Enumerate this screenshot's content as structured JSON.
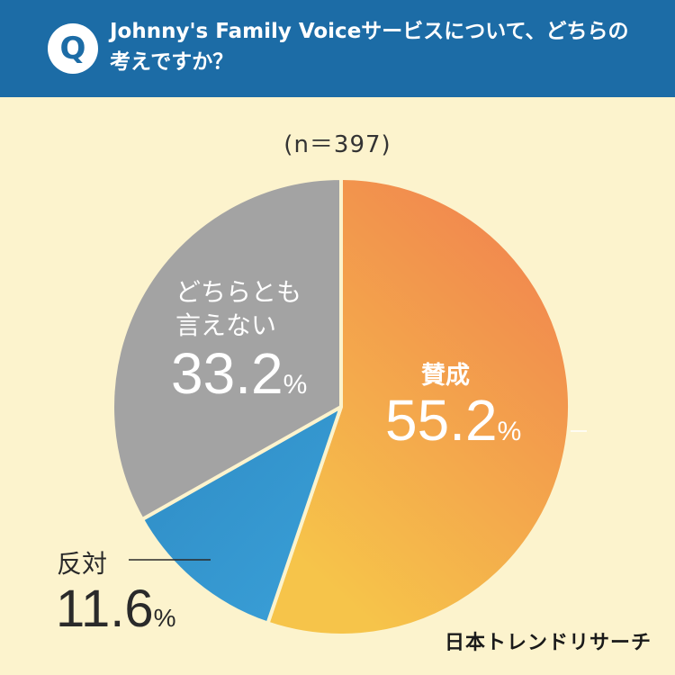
{
  "header": {
    "badge": "Q",
    "question": "Johnny's Family Voiceサービスについて、どちらの\n考えですか？"
  },
  "sample": "(n＝397)",
  "chart_data": {
    "type": "pie",
    "title": "",
    "slices": [
      {
        "label": "賛成",
        "value": 55.2,
        "display": "55.2",
        "unit": "%",
        "color": "#f1884e",
        "color2": "#f6c44a"
      },
      {
        "label": "反対",
        "value": 11.6,
        "display": "11.6",
        "unit": "%",
        "color": "#2f8cc5",
        "color2": "#3aa0d8"
      },
      {
        "label": "どちらとも言えない",
        "value": 33.2,
        "display": "33.2",
        "unit": "%",
        "color": "#a3a3a3",
        "color2": "#a3a3a3"
      }
    ],
    "labels": {
      "agree": {
        "line1": "賛成"
      },
      "disagree": {
        "line1": "反対"
      },
      "neutral": {
        "line1": "どちらとも",
        "line2": "言えない"
      }
    }
  },
  "brand": "日本トレンドリサーチ"
}
